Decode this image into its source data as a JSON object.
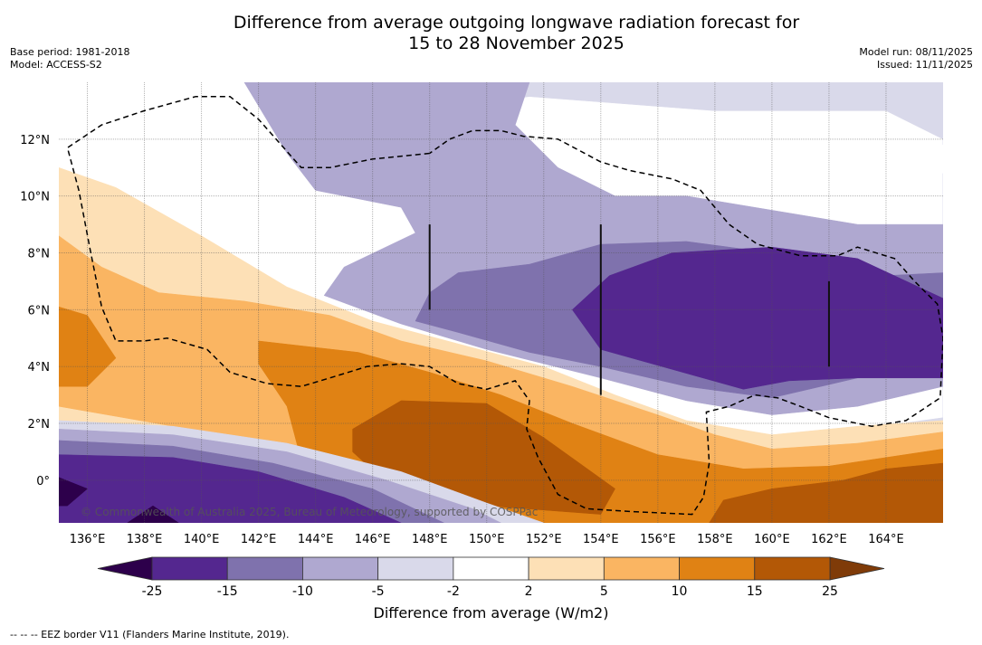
{
  "title_line1": "Difference from average outgoing longwave radiation forecast for",
  "title_line2": "15 to 28 November 2025",
  "meta": {
    "base_period": "Base period: 1981-2018",
    "model": "Model: ACCESS-S2",
    "model_run": "Model run: 08/11/2025",
    "issued": "Issued: 11/11/2025"
  },
  "copyright": "© Commonwealth of Australia 2025, Bureau of Meteorology, supported by COSPPac",
  "footnote": "--  --  -- EEZ border V11 (Flanders Marine Institute, 2019).",
  "chart_data": {
    "type": "heatmap",
    "title": "Difference from average outgoing longwave radiation forecast for 15 to 28 November 2025",
    "projection": "PlateCarree",
    "lon_range": [
      135,
      166
    ],
    "lat_range": [
      -1.5,
      14
    ],
    "x_ticks": [
      "136°E",
      "138°E",
      "140°E",
      "142°E",
      "144°E",
      "146°E",
      "148°E",
      "150°E",
      "152°E",
      "154°E",
      "156°E",
      "158°E",
      "160°E",
      "162°E",
      "164°E"
    ],
    "x_tick_values": [
      136,
      138,
      140,
      142,
      144,
      146,
      148,
      150,
      152,
      154,
      156,
      158,
      160,
      162,
      164
    ],
    "y_ticks": [
      "0°",
      "2°N",
      "4°N",
      "6°N",
      "8°N",
      "10°N",
      "12°N"
    ],
    "y_tick_values": [
      0,
      2,
      4,
      6,
      8,
      10,
      12
    ],
    "grid": true,
    "colorbar": {
      "label": "Difference from average (W/m2)",
      "boundaries": [
        -25,
        -15,
        -10,
        -5,
        -2,
        2,
        5,
        10,
        15,
        25
      ],
      "tick_labels": [
        "-25",
        "-15",
        "-10",
        "-5",
        "-2",
        "2",
        "5",
        "10",
        "15",
        "25"
      ],
      "colors": [
        "#54278f",
        "#7f72ad",
        "#afa8d0",
        "#d9d9ea",
        "#ffffff",
        "#fde0b6",
        "#fab562",
        "#e08214",
        "#b35806"
      ],
      "under_color": "#2d004b",
      "over_color": "#7f3b08",
      "extend": "both",
      "placement": "bottom"
    },
    "fields": [
      {
        "level": "-5..-2",
        "color": "#d9d9ea",
        "polygon": [
          [
            141.5,
            14
          ],
          [
            166,
            14
          ],
          [
            166,
            -1.5
          ],
          [
            135,
            -1.5
          ],
          [
            135,
            2.2
          ],
          [
            141,
            1.9
          ],
          [
            147,
            1.2
          ],
          [
            151,
            0
          ],
          [
            155,
            -1.5
          ],
          [
            158,
            -0.8
          ],
          [
            161,
            1.5
          ],
          [
            166,
            2.2
          ],
          [
            166,
            12
          ],
          [
            164,
            13
          ],
          [
            158,
            13
          ],
          [
            151.5,
            13.5
          ],
          [
            147.5,
            13
          ],
          [
            144,
            12.5
          ],
          [
            141.5,
            14
          ]
        ]
      },
      {
        "level": "-10..-5",
        "color": "#afa8d0",
        "polygon": [
          [
            141.5,
            14
          ],
          [
            151.5,
            14
          ],
          [
            151,
            12.5
          ],
          [
            152.5,
            11
          ],
          [
            154.5,
            10
          ],
          [
            157,
            10
          ],
          [
            160,
            9.5
          ],
          [
            163,
            9
          ],
          [
            166,
            9
          ],
          [
            166,
            3.3
          ],
          [
            163,
            2.6
          ],
          [
            160,
            2.3
          ],
          [
            157,
            2.8
          ],
          [
            154,
            3.6
          ],
          [
            150,
            4.6
          ],
          [
            147,
            5.5
          ],
          [
            144.3,
            6.5
          ],
          [
            145,
            7.5
          ],
          [
            147.5,
            8.7
          ],
          [
            147,
            9.6
          ],
          [
            144,
            10.2
          ],
          [
            143,
            11.5
          ],
          [
            141.5,
            14
          ]
        ]
      },
      {
        "level": "-15..-10",
        "color": "#7f72ad",
        "polygon": [
          [
            148,
            6.6
          ],
          [
            149,
            7.3
          ],
          [
            151.5,
            7.6
          ],
          [
            154,
            8.3
          ],
          [
            157,
            8.4
          ],
          [
            160,
            8.0
          ],
          [
            164,
            7.2
          ],
          [
            166,
            7.3
          ],
          [
            166,
            3.9
          ],
          [
            163,
            3.6
          ],
          [
            160,
            2.9
          ],
          [
            157,
            3.3
          ],
          [
            154,
            4.0
          ],
          [
            151.5,
            4.5
          ],
          [
            149,
            5.2
          ],
          [
            147.5,
            5.6
          ],
          [
            148,
            6.6
          ]
        ]
      },
      {
        "level": "<-15",
        "color": "#54278f",
        "polygon": [
          [
            153,
            6
          ],
          [
            154.3,
            7.2
          ],
          [
            156.5,
            8
          ],
          [
            160,
            8.2
          ],
          [
            163,
            7.8
          ],
          [
            166,
            6.4
          ],
          [
            166,
            3.6
          ],
          [
            163,
            3.6
          ],
          [
            160.6,
            3.5
          ],
          [
            159,
            3.2
          ],
          [
            156.5,
            3.9
          ],
          [
            154,
            4.6
          ],
          [
            153,
            6
          ]
        ]
      },
      {
        "level": ">2 (south)",
        "color": "#fde0b6",
        "polygon": [
          [
            135,
            11
          ],
          [
            137,
            10.3
          ],
          [
            140,
            8.6
          ],
          [
            143,
            6.8
          ],
          [
            146,
            5.6
          ],
          [
            149,
            4.8
          ],
          [
            152,
            4.0
          ],
          [
            154.5,
            3.0
          ],
          [
            157,
            2.1
          ],
          [
            160,
            1.6
          ],
          [
            163,
            1.9
          ],
          [
            166,
            2.1
          ],
          [
            166,
            -1.5
          ],
          [
            135,
            -1.5
          ],
          [
            135,
            2.5
          ],
          [
            138,
            2.2
          ],
          [
            141,
            1.2
          ],
          [
            144.5,
            0.6
          ],
          [
            148,
            -0.4
          ],
          [
            151,
            -1.5
          ],
          [
            156,
            -1.5
          ],
          [
            154,
            -1.5
          ],
          [
            135,
            -1.5
          ],
          [
            135,
            11
          ]
        ]
      },
      {
        "level": "5..10",
        "color": "#fab562",
        "polygon": [
          [
            135,
            8.6
          ],
          [
            136.5,
            7.5
          ],
          [
            138.5,
            6.6
          ],
          [
            141.5,
            6.3
          ],
          [
            144.5,
            5.8
          ],
          [
            147,
            4.9
          ],
          [
            150,
            4.2
          ],
          [
            153,
            3.3
          ],
          [
            156,
            2.3
          ],
          [
            158,
            1.6
          ],
          [
            160,
            1.1
          ],
          [
            163,
            1.3
          ],
          [
            166,
            1.7
          ],
          [
            166,
            -1.5
          ],
          [
            148,
            -1.5
          ],
          [
            145,
            -0.5
          ],
          [
            142,
            0.7
          ],
          [
            139,
            1.9
          ],
          [
            135,
            2.6
          ],
          [
            135,
            8.6
          ]
        ]
      },
      {
        "level": "10..15",
        "color": "#e08214",
        "polygon": [
          [
            135,
            6.1
          ],
          [
            136,
            5.8
          ],
          [
            137,
            4.3
          ],
          [
            136,
            3.3
          ],
          [
            135,
            3.3
          ],
          [
            135,
            6.1
          ]
        ]
      },
      {
        "level": "10..15 (main)",
        "color": "#e08214",
        "polygon": [
          [
            142,
            4.9
          ],
          [
            145.5,
            4.5
          ],
          [
            148,
            3.8
          ],
          [
            150.5,
            3.0
          ],
          [
            153,
            2.0
          ],
          [
            156,
            0.9
          ],
          [
            159,
            0.4
          ],
          [
            162,
            0.5
          ],
          [
            166,
            1.1
          ],
          [
            166,
            -1.5
          ],
          [
            145.5,
            -1.5
          ],
          [
            145,
            -1
          ],
          [
            143.5,
            0.7
          ],
          [
            143,
            2.6
          ],
          [
            142,
            4.1
          ],
          [
            142,
            4.9
          ]
        ]
      },
      {
        "level": "15..25",
        "color": "#b35806",
        "polygon": [
          [
            145.3,
            1.8
          ],
          [
            147,
            2.8
          ],
          [
            150,
            2.7
          ],
          [
            152,
            1.5
          ],
          [
            154.5,
            -0.3
          ],
          [
            154,
            -1.2
          ],
          [
            150,
            -0.9
          ],
          [
            146.5,
            -0.1
          ],
          [
            145.3,
            1.0
          ],
          [
            145.3,
            1.8
          ]
        ]
      },
      {
        "level": "15..25 (east)",
        "color": "#b35806",
        "polygon": [
          [
            157.8,
            -1.5
          ],
          [
            158.3,
            -0.7
          ],
          [
            160,
            -0.3
          ],
          [
            162.5,
            0.0
          ],
          [
            164,
            0.4
          ],
          [
            166,
            0.6
          ],
          [
            166,
            -1.5
          ],
          [
            157.8,
            -1.5
          ]
        ]
      },
      {
        "level": "-5..-2 stripe",
        "color": "#d9d9ea",
        "polygon": [
          [
            135,
            2.1
          ],
          [
            139,
            1.9
          ],
          [
            143,
            1.3
          ],
          [
            147,
            0.3
          ],
          [
            150,
            -0.8
          ],
          [
            152,
            -1.5
          ],
          [
            135,
            -1.5
          ],
          [
            135,
            2.1
          ]
        ]
      },
      {
        "level": "-10..-5 stripe",
        "color": "#afa8d0",
        "polygon": [
          [
            135,
            1.8
          ],
          [
            139,
            1.6
          ],
          [
            143,
            1.0
          ],
          [
            146.5,
            0.0
          ],
          [
            149.5,
            -1.0
          ],
          [
            150.5,
            -1.5
          ],
          [
            135,
            -1.5
          ],
          [
            135,
            1.8
          ]
        ]
      },
      {
        "level": "-15..-10 stripe",
        "color": "#7f72ad",
        "polygon": [
          [
            135,
            1.4
          ],
          [
            139,
            1.2
          ],
          [
            142.5,
            0.6
          ],
          [
            146,
            -0.3
          ],
          [
            148.5,
            -1.5
          ],
          [
            135,
            -1.5
          ],
          [
            135,
            1.4
          ]
        ]
      },
      {
        "level": "<-15 south",
        "color": "#54278f",
        "polygon": [
          [
            135,
            0.9
          ],
          [
            139,
            0.8
          ],
          [
            142,
            0.3
          ],
          [
            145,
            -0.6
          ],
          [
            147,
            -1.5
          ],
          [
            135,
            -1.5
          ],
          [
            135,
            0.9
          ]
        ]
      },
      {
        "level": "<-25",
        "color": "#2d004b",
        "polygon": [
          [
            135,
            0.1
          ],
          [
            136,
            -0.3
          ],
          [
            135.3,
            -0.9
          ],
          [
            135,
            -0.9
          ],
          [
            135,
            0.1
          ]
        ]
      },
      {
        "level": "<-25 b",
        "color": "#2d004b",
        "polygon": [
          [
            137.4,
            -1.5
          ],
          [
            138.3,
            -0.9
          ],
          [
            139.2,
            -1.5
          ],
          [
            137.4,
            -1.5
          ]
        ]
      },
      {
        "level": "-2..2 island",
        "color": "#ffffff",
        "polygon": [
          [
            157.8,
            11.8
          ],
          [
            159,
            12.3
          ],
          [
            161,
            12.2
          ],
          [
            162,
            11.7
          ],
          [
            161.5,
            11.2
          ],
          [
            159,
            11.3
          ],
          [
            157.8,
            11.8
          ]
        ]
      },
      {
        "level": "-2..2 east",
        "color": "#ffffff",
        "polygon": [
          [
            165.5,
            11.5
          ],
          [
            166,
            11.8
          ],
          [
            166,
            10.8
          ],
          [
            165.7,
            11.0
          ],
          [
            165.5,
            11.5
          ]
        ]
      }
    ],
    "eez_border": [
      [
        [
          148,
          11.5
        ],
        [
          146,
          11.3
        ],
        [
          144.5,
          11.0
        ],
        [
          143.5,
          11.0
        ],
        [
          142,
          12.7
        ],
        [
          141,
          13.5
        ],
        [
          139.8,
          13.5
        ],
        [
          138,
          13.0
        ],
        [
          136.5,
          12.5
        ],
        [
          135.3,
          11.7
        ],
        [
          135.7,
          10.2
        ],
        [
          136.1,
          8.1
        ],
        [
          136.5,
          6.1
        ],
        [
          137,
          4.9
        ],
        [
          138,
          4.9
        ],
        [
          138.8,
          5.0
        ],
        [
          140.2,
          4.6
        ],
        [
          141,
          3.8
        ],
        [
          142.3,
          3.4
        ],
        [
          143.5,
          3.3
        ],
        [
          144.5,
          3.6
        ],
        [
          145.8,
          4.0
        ],
        [
          147,
          4.1
        ],
        [
          148,
          4.0
        ],
        [
          149,
          3.4
        ],
        [
          150,
          3.2
        ],
        [
          151,
          3.5
        ],
        [
          151.5,
          2.8
        ],
        [
          151.4,
          1.8
        ],
        [
          151.8,
          0.8
        ],
        [
          152.5,
          -0.5
        ],
        [
          153.5,
          -1.0
        ],
        [
          155,
          -1.1
        ],
        [
          157.2,
          -1.2
        ],
        [
          157.6,
          -0.6
        ],
        [
          157.8,
          0.6
        ],
        [
          157.7,
          2.4
        ],
        [
          158.5,
          2.6
        ],
        [
          159.4,
          3.0
        ],
        [
          160.2,
          2.9
        ],
        [
          161,
          2.6
        ],
        [
          162,
          2.2
        ],
        [
          163.5,
          1.9
        ],
        [
          164.7,
          2.1
        ],
        [
          165.9,
          2.9
        ],
        [
          166,
          5.0
        ],
        [
          165.8,
          6.2
        ],
        [
          165,
          7
        ],
        [
          164.3,
          7.8
        ],
        [
          163,
          8.2
        ],
        [
          162.3,
          7.9
        ],
        [
          161,
          7.9
        ],
        [
          159.5,
          8.3
        ],
        [
          158.5,
          9.0
        ],
        [
          157.5,
          10.2
        ],
        [
          156.5,
          10.6
        ],
        [
          155,
          10.9
        ],
        [
          154,
          11.2
        ],
        [
          152.5,
          12.0
        ],
        [
          151.3,
          12.1
        ],
        [
          150.5,
          12.3
        ],
        [
          149.5,
          12.3
        ],
        [
          148.7,
          12.0
        ],
        [
          148,
          11.5
        ]
      ]
    ],
    "vertical_bars": [
      {
        "lon": 148,
        "lat_from": 6,
        "lat_to": 9
      },
      {
        "lon": 154,
        "lat_from": 3,
        "lat_to": 9
      },
      {
        "lon": 162,
        "lat_from": 4,
        "lat_to": 7
      }
    ]
  }
}
